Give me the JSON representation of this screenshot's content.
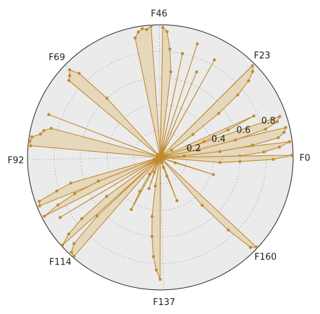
{
  "chart_data": {
    "type": "radar",
    "theta_tick_labels": [
      "F0",
      "F23",
      "F46",
      "F69",
      "F92",
      "F114",
      "F137",
      "F160"
    ],
    "radial_ticks": [
      0.2,
      0.4,
      0.6,
      0.8
    ],
    "rlim": [
      0,
      1.0
    ],
    "grid": true,
    "num_features": 183,
    "segments": [
      {
        "center_angle_deg": 1.0,
        "values": [
          0.02,
          0.1,
          0.46,
          0.6,
          0.78,
          0.9,
          0.98
        ]
      },
      {
        "center_angle_deg": 7.5,
        "values": [
          0.05,
          0.18,
          0.45,
          0.7,
          0.9,
          0.95,
          0.97
        ]
      },
      {
        "center_angle_deg": 14.0,
        "values": [
          0.04,
          0.3,
          0.58,
          0.82,
          0.92,
          0.95
        ]
      },
      {
        "center_angle_deg": 20.0,
        "values": [
          0.03,
          0.22,
          0.35,
          0.55,
          0.77
        ]
      },
      {
        "center_angle_deg": 38.0,
        "values": [
          0.02,
          0.1,
          0.3,
          0.55,
          0.75,
          0.88,
          0.95,
          0.98
        ]
      },
      {
        "center_angle_deg": 60.0,
        "values": [
          0.03,
          0.84
        ]
      },
      {
        "center_angle_deg": 66.0,
        "values": [
          0.04,
          0.7
        ]
      },
      {
        "center_angle_deg": 71.0,
        "values": [
          0.02,
          0.9
        ]
      },
      {
        "center_angle_deg": 77.0,
        "values": [
          0.03,
          0.8
        ]
      },
      {
        "center_angle_deg": 85.0,
        "values": [
          0.03,
          0.65,
          0.82,
          0.95,
          0.98
        ]
      },
      {
        "center_angle_deg": 97.0,
        "values": [
          0.02,
          0.99,
          0.97,
          0.98,
          0.96,
          0.92
        ]
      },
      {
        "center_angle_deg": 135.0,
        "values": [
          0.03,
          0.6,
          0.88,
          0.95,
          0.92,
          0.9
        ]
      },
      {
        "center_angle_deg": 158.0,
        "values": [
          0.02,
          0.9
        ]
      },
      {
        "center_angle_deg": 169.0,
        "values": [
          0.02,
          0.85,
          0.9,
          0.92,
          0.98,
          0.99,
          0.98
        ]
      },
      {
        "center_angle_deg": 198.0,
        "values": [
          0.03,
          0.7,
          0.82,
          0.97,
          0.98
        ]
      },
      {
        "center_angle_deg": 203.0,
        "values": [
          0.05,
          0.5,
          0.7,
          0.85,
          0.98
        ]
      },
      {
        "center_angle_deg": 210.0,
        "values": [
          0.04,
          0.88
        ]
      },
      {
        "center_angle_deg": 218.0,
        "values": [
          0.02,
          0.5,
          0.75,
          0.9,
          0.99
        ]
      },
      {
        "center_angle_deg": 225.0,
        "values": [
          0.03,
          0.65,
          0.92,
          0.98,
          0.99
        ]
      },
      {
        "center_angle_deg": 238.0,
        "values": [
          0.05,
          0.15,
          0.3,
          0.45
        ]
      },
      {
        "center_angle_deg": 248.0,
        "values": [
          0.04,
          0.12,
          0.25
        ]
      },
      {
        "center_angle_deg": 264.0,
        "values": [
          0.02,
          0.22,
          0.45,
          0.6,
          0.75,
          0.85,
          0.92
        ]
      },
      {
        "center_angle_deg": 288.0,
        "values": [
          0.04,
          0.08,
          0.15,
          0.35
        ]
      },
      {
        "center_angle_deg": 313.0,
        "values": [
          0.02,
          0.48,
          0.75,
          0.96,
          0.99
        ]
      },
      {
        "center_angle_deg": 340.0,
        "values": [
          0.03,
          0.12,
          0.42
        ]
      },
      {
        "center_angle_deg": 357.0,
        "values": [
          0.02,
          0.45,
          0.6,
          0.85,
          0.99
        ]
      }
    ],
    "line_color": "#c08a2e",
    "fill_color": "#e5d5b5",
    "background_color": "#ebebeb",
    "gridline_color": "#aaaaaa"
  }
}
